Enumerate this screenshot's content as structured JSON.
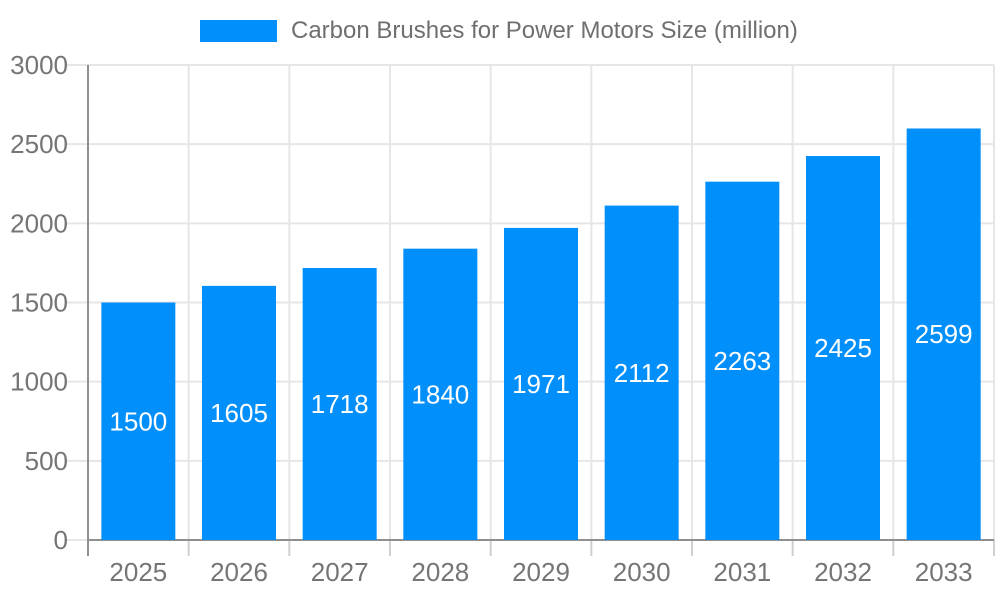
{
  "chart_data": {
    "type": "bar",
    "title": "",
    "xlabel": "",
    "ylabel": "",
    "categories": [
      "2025",
      "2026",
      "2027",
      "2028",
      "2029",
      "2030",
      "2031",
      "2032",
      "2033"
    ],
    "series": [
      {
        "name": "Carbon Brushes for Power Motors Size (million)",
        "values": [
          1500,
          1605,
          1718,
          1840,
          1971,
          2112,
          2263,
          2425,
          2599
        ]
      }
    ],
    "ylim": [
      0,
      3000
    ],
    "ytick_step": 500,
    "yticks": [
      0,
      500,
      1000,
      1500,
      2000,
      2500,
      3000
    ],
    "grid": true,
    "legend_position": "top",
    "value_labels_shown": true,
    "colors": {
      "bar": "#008FFB",
      "value_label": "#ffffff",
      "axis_text": "#757575",
      "legend_text": "#6f6f6f",
      "grid_line": "#e6e6e6",
      "axis_line": "#8f8f8f",
      "tick_line": "#cfcfcf",
      "background": "#ffffff"
    }
  }
}
